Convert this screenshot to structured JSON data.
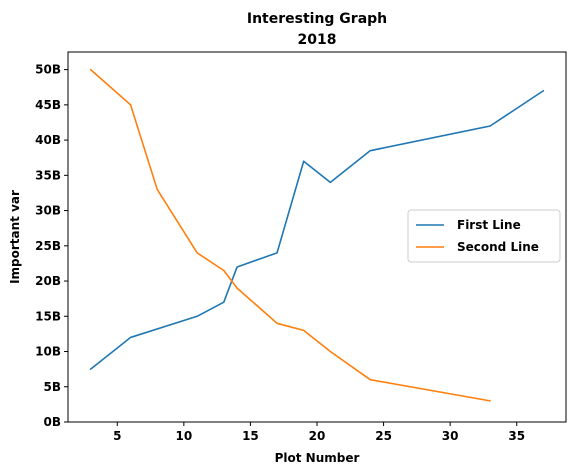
{
  "chart_data": {
    "type": "line",
    "title": "Interesting Graph",
    "subtitle": "2018",
    "xlabel": "Plot Number",
    "ylabel": "Important var",
    "xlim": [
      1.3,
      38.7
    ],
    "ylim": [
      0,
      52.5
    ],
    "x_ticks": [
      5,
      10,
      15,
      20,
      25,
      30,
      35
    ],
    "y_ticks": [
      0,
      5,
      10,
      15,
      20,
      25,
      30,
      35,
      40,
      45,
      50
    ],
    "y_tick_labels": [
      "0B",
      "5B",
      "10B",
      "15B",
      "20B",
      "25B",
      "30B",
      "35B",
      "40B",
      "45B",
      "50B"
    ],
    "grid": false,
    "legend_position": "center-right",
    "series": [
      {
        "name": "First Line",
        "color": "#1f77b4",
        "x": [
          3,
          6,
          11,
          13,
          14,
          17,
          19,
          21,
          24,
          33,
          37
        ],
        "y": [
          7.5,
          12,
          15,
          17,
          22,
          24,
          37,
          34,
          38.5,
          42,
          47
        ]
      },
      {
        "name": "Second Line",
        "color": "#ff7f0e",
        "x": [
          3,
          6,
          8,
          11,
          13,
          14,
          17,
          19,
          21,
          24,
          33
        ],
        "y": [
          50,
          45,
          33,
          24,
          21.5,
          19,
          14,
          13,
          10,
          6,
          3
        ]
      }
    ]
  }
}
